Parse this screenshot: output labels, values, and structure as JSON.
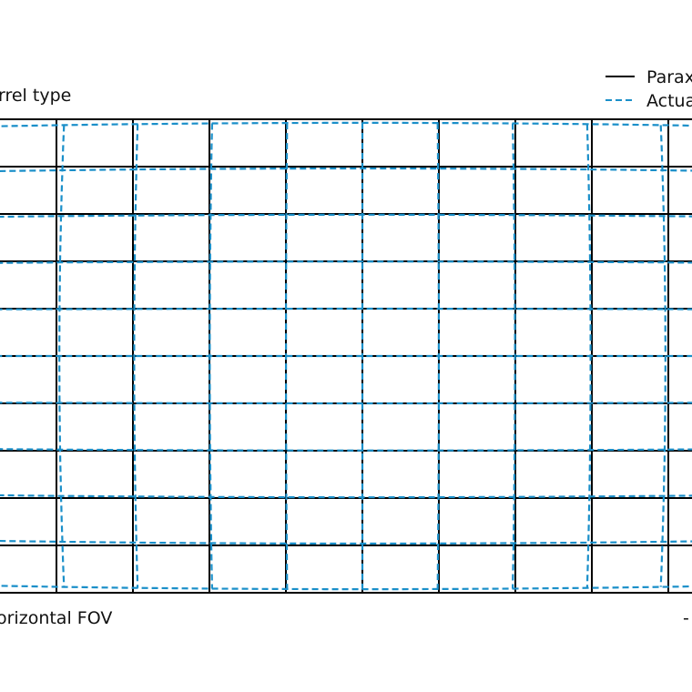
{
  "chart_data": {
    "type": "line",
    "title": "rrel type",
    "xlabel": "orizontal FOV",
    "x_tick_right": "-",
    "legend": {
      "placement": "top-right",
      "entries": [
        {
          "name": "Parax",
          "style": "solid",
          "color": "#000000"
        },
        {
          "name": "Actua",
          "style": "dashed",
          "color": "#1a8fc9"
        }
      ]
    },
    "distortion": "barrel",
    "paraxial_grid": {
      "x_lines": [
        -5,
        -4,
        -3,
        -2,
        -1,
        0,
        1,
        2,
        3,
        4,
        5
      ],
      "y_lines": [
        -5,
        -4,
        -3,
        -2,
        -1,
        0,
        1,
        2,
        3,
        4,
        5
      ]
    },
    "actual_grid_radial_coefficient": 0.0006,
    "grid": true
  }
}
